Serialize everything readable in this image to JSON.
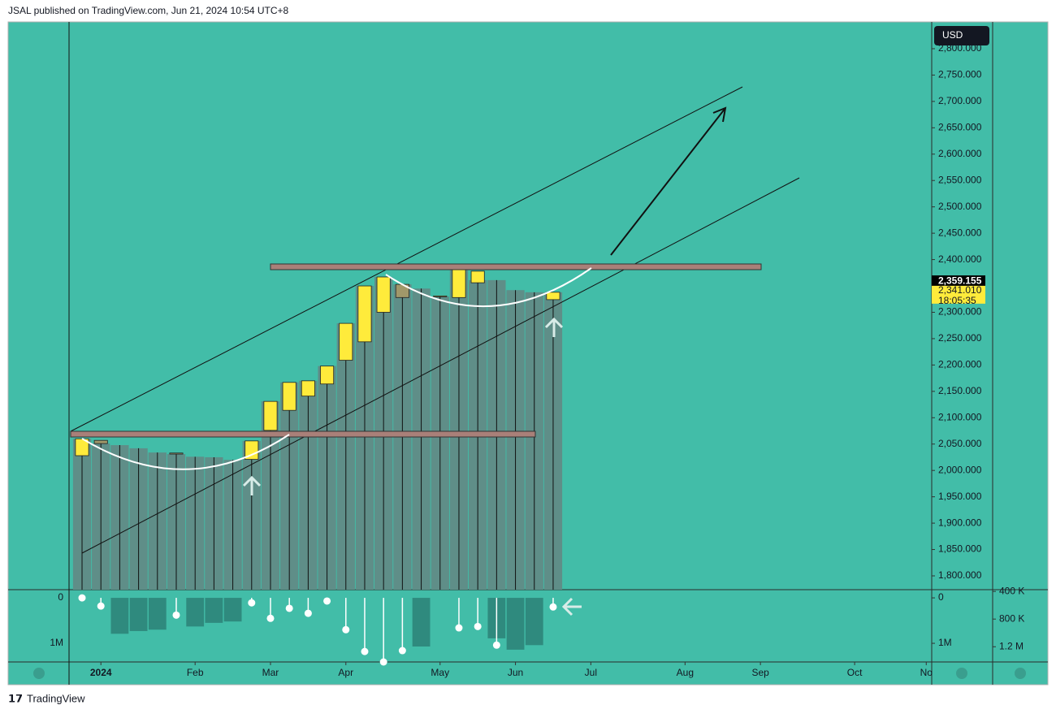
{
  "header": "JSAL published on TradingView.com, Jun 21, 2024 10:54 UTC+8",
  "currency": "USD",
  "brand": "TradingView",
  "chart_data": {
    "type": "candlestick",
    "open": [
      2028,
      2057,
      null,
      null,
      null,
      2033,
      null,
      null,
      null,
      2021,
      2076,
      2114,
      2141,
      2164,
      2209,
      2244,
      2300,
      2353,
      null,
      2330,
      2328,
      2356,
      null,
      null,
      null,
      2324
    ],
    "close": [
      2060,
      2051,
      null,
      null,
      null,
      2031,
      null,
      null,
      null,
      2056,
      2131,
      2167,
      2170,
      2198,
      2279,
      2350,
      2367,
      2328,
      null,
      2331,
      2381,
      2378,
      null,
      null,
      null,
      2338
    ],
    "columns": [
      2060,
      2051,
      2048,
      2042,
      2034,
      2031,
      2026,
      2025,
      2020,
      2056,
      2131,
      2167,
      2170,
      2198,
      2279,
      2350,
      2367,
      2353,
      2345,
      2330,
      2381,
      2361,
      2361,
      2342,
      2338,
      2338
    ],
    "up_color": "#ffeb3b",
    "down_color": "#a0986a",
    "column_color": "#5f8e88",
    "xlim": [
      -0.69,
      45.09
    ],
    "xticks": [
      {
        "value": 1,
        "label": "2024"
      },
      {
        "value": 6,
        "label": "Feb"
      },
      {
        "value": 10,
        "label": "Mar"
      },
      {
        "value": 14,
        "label": "Apr"
      },
      {
        "value": 19,
        "label": "May"
      },
      {
        "value": 23,
        "label": "Jun"
      },
      {
        "value": 27,
        "label": "Jul"
      },
      {
        "value": 32,
        "label": "Aug"
      },
      {
        "value": 36,
        "label": "Sep"
      },
      {
        "value": 41,
        "label": "Oct"
      },
      {
        "value": 44.8,
        "label": "No"
      }
    ],
    "ylim": [
      1773.8,
      2850.8
    ],
    "yticks": [
      {
        "value": 1800,
        "label": "1,800.000"
      },
      {
        "value": 1850,
        "label": "1,850.000"
      },
      {
        "value": 1900,
        "label": "1,900.000"
      },
      {
        "value": 1950,
        "label": "1,950.000"
      },
      {
        "value": 2000,
        "label": "2,000.000"
      },
      {
        "value": 2050,
        "label": "2,050.000"
      },
      {
        "value": 2100,
        "label": "2,100.000"
      },
      {
        "value": 2150,
        "label": "2,150.000"
      },
      {
        "value": 2200,
        "label": "2,200.000"
      },
      {
        "value": 2250,
        "label": "2,250.000"
      },
      {
        "value": 2300,
        "label": "2,300.000"
      },
      {
        "value": 2350,
        "label": "2,350.000"
      },
      {
        "value": 2400,
        "label": "2,400.000"
      },
      {
        "value": 2450,
        "label": "2,450.000"
      },
      {
        "value": 2500,
        "label": "2,500.000"
      },
      {
        "value": 2550,
        "label": "2,550.000"
      },
      {
        "value": 2600,
        "label": "2,600.000"
      },
      {
        "value": 2650,
        "label": "2,650.000"
      },
      {
        "value": 2700,
        "label": "2,700.000"
      },
      {
        "value": 2750,
        "label": "2,750.000"
      },
      {
        "value": 2800,
        "label": "2,800.000"
      }
    ],
    "price_tags": [
      {
        "value": 2359.155,
        "label": "2,359.155"
      },
      {
        "value": 2341.01,
        "label": "2,341.010"
      }
    ],
    "countdown": "18:05:35",
    "lower_pane": {
      "histogram": [
        null,
        null,
        0.79,
        0.73,
        0.7,
        null,
        0.63,
        0.55,
        0.52,
        null,
        null,
        null,
        null,
        null,
        null,
        null,
        null,
        null,
        1.07,
        null,
        null,
        null,
        0.89,
        1.14,
        1.04,
        null
      ],
      "dots": [
        0,
        0.18,
        null,
        null,
        null,
        0.38,
        null,
        null,
        null,
        0.11,
        0.45,
        0.23,
        0.34,
        0.07,
        0.7,
        1.18,
        1.41,
        1.16,
        null,
        null,
        0.66,
        0.63,
        1.04,
        null,
        null,
        0.2
      ],
      "histogram_color": "#2f8a7e",
      "ylim": [
        -0.18,
        1.41
      ],
      "yticks": [
        0,
        {
          "value": 1,
          "label": "1M"
        }
      ],
      "y2lim": [
        0.375,
        1.42
      ],
      "y2ticks": [
        {
          "value": 0.4,
          "label": "400 K"
        },
        {
          "value": 0.8,
          "label": "800 K"
        },
        {
          "value": 1.2,
          "label": "1.2 M"
        }
      ]
    }
  }
}
